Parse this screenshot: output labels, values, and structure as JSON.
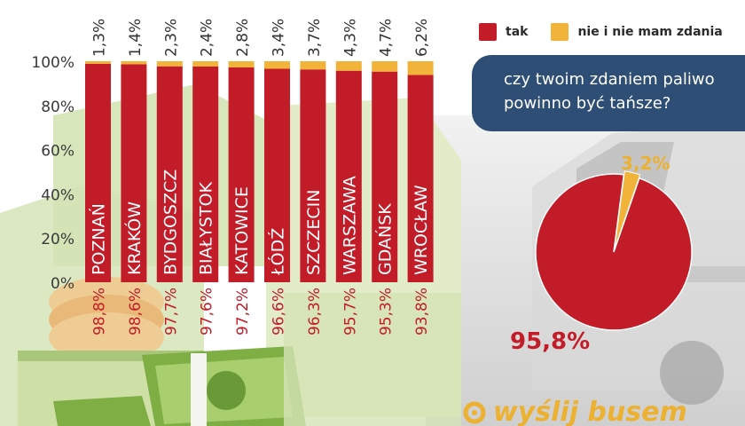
{
  "colors": {
    "tak": "#c21c28",
    "nie": "#f1b33a",
    "question_bg": "#2e4e75",
    "pie_small_label": "#ecb130",
    "pie_big_label": "#c21c28",
    "logo": "#ecb130"
  },
  "legend": {
    "items": [
      {
        "label": "tak",
        "color": "#c21c28"
      },
      {
        "label": "nie i nie mam zdania",
        "color": "#f1b33a"
      }
    ]
  },
  "question": "czy twoim zdaniem paliwo powinno być tańsze?",
  "logo": {
    "text": "wyślij busem",
    "icon": "logo-ring-icon"
  },
  "chart_data": [
    {
      "type": "bar",
      "stacked": true,
      "orientation": "vertical",
      "categories": [
        "POZNAŃ",
        "KRAKÓW",
        "BYDGOSZCZ",
        "BIAŁYSTOK",
        "KATOWICE",
        "ŁÓDŹ",
        "SZCZECIN",
        "WARSZAWA",
        "GDAŃSK",
        "WROCŁAW"
      ],
      "series": [
        {
          "name": "tak",
          "values": [
            98.8,
            98.6,
            97.7,
            97.6,
            97.2,
            96.6,
            96.3,
            95.7,
            95.3,
            93.8
          ],
          "labels": [
            "98,8%",
            "98,6%",
            "97,7%",
            "97,6%",
            "97,2%",
            "96,6%",
            "96,3%",
            "95,7%",
            "95,3%",
            "93,8%"
          ]
        },
        {
          "name": "nie i nie mam zdania",
          "values": [
            1.3,
            1.4,
            2.3,
            2.4,
            2.8,
            3.4,
            3.7,
            4.3,
            4.7,
            6.2
          ],
          "labels": [
            "1,3%",
            "1,4%",
            "2,3%",
            "2,4%",
            "2,8%",
            "3,4%",
            "3,7%",
            "4,3%",
            "4,7%",
            "6,2%"
          ]
        }
      ],
      "ylim": [
        0,
        100
      ],
      "yticks": [
        "0%",
        "20%",
        "40%",
        "60%",
        "80%",
        "100%"
      ],
      "grid": false,
      "legend": "top-right"
    },
    {
      "type": "pie",
      "labels": [
        "tak",
        "nie i nie mam zdania"
      ],
      "values": [
        95.8,
        3.2
      ],
      "value_labels": [
        "95,8%",
        "3,2%"
      ],
      "title": "czy twoim zdaniem paliwo powinno być tańsze?"
    }
  ]
}
